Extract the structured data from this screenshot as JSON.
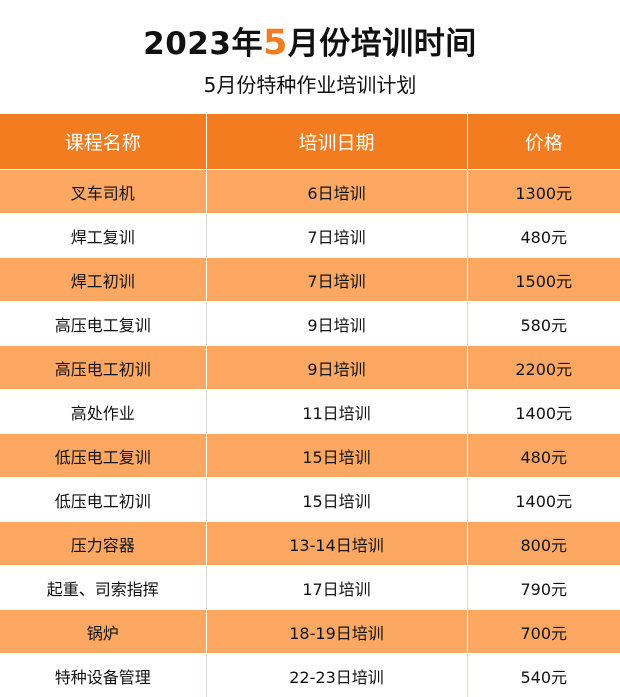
{
  "title": {
    "prefix": "2023年",
    "highlight": "5",
    "suffix": "月份培训时间"
  },
  "subtitle": "5月份特种作业培训计划",
  "colors": {
    "accent": "#f47c20",
    "row_alt": "#fca863",
    "row_plain": "#ffffff"
  },
  "table": {
    "headers": [
      "课程名称",
      "培训日期",
      "价格"
    ],
    "rows": [
      [
        "叉车司机",
        "6日培训",
        "1300元"
      ],
      [
        "焊工复训",
        "7日培训",
        "480元"
      ],
      [
        "焊工初训",
        "7日培训",
        "1500元"
      ],
      [
        "高压电工复训",
        "9日培训",
        "580元"
      ],
      [
        "高压电工初训",
        "9日培训",
        "2200元"
      ],
      [
        "高处作业",
        "11日培训",
        "1400元"
      ],
      [
        "低压电工复训",
        "15日培训",
        "480元"
      ],
      [
        "低压电工初训",
        "15日培训",
        "1400元"
      ],
      [
        "压力容器",
        "13-14日培训",
        "800元"
      ],
      [
        "起重、司索指挥",
        "17日培训",
        "790元"
      ],
      [
        "锅炉",
        "18-19日培训",
        "700元"
      ],
      [
        "特种设备管理",
        "22-23日培训",
        "540元"
      ]
    ]
  }
}
